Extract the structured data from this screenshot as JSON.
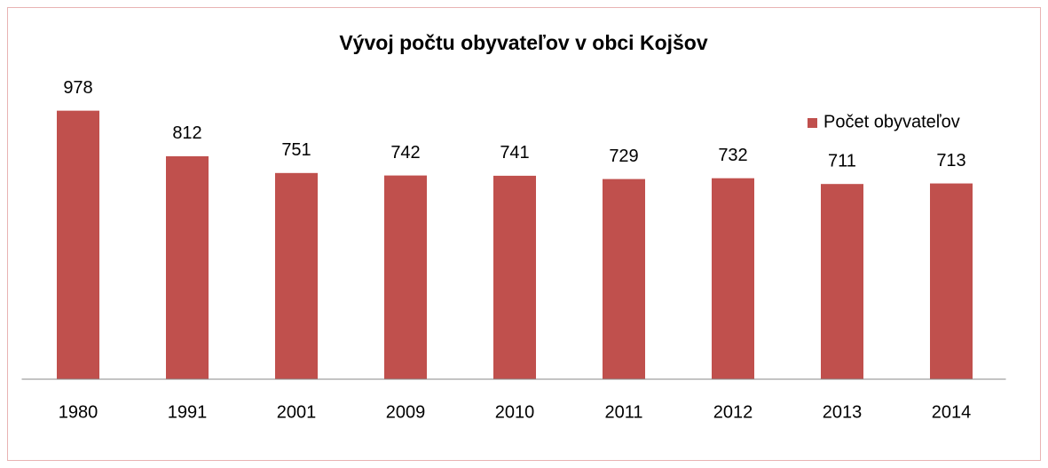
{
  "chart_data": {
    "type": "bar",
    "title": "Vývoj počtu obyvateľov v obci Kojšov",
    "categories": [
      "1980",
      "1991",
      "2001",
      "2009",
      "2010",
      "2011",
      "2012",
      "2013",
      "2014"
    ],
    "series": [
      {
        "name": "Počet obyvateľov",
        "color": "#c0504d",
        "values": [
          978,
          812,
          751,
          742,
          741,
          729,
          732,
          711,
          713
        ]
      }
    ],
    "ylim": [
      0,
      1200
    ],
    "legend": "right"
  }
}
